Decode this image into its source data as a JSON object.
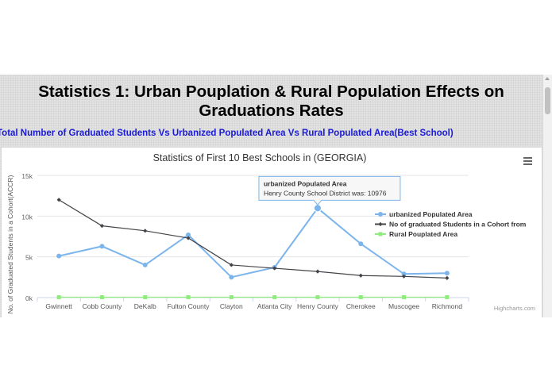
{
  "page": {
    "heading": "Statistics 1: Urban Pouplation & Rural Population Effects on Graduations Rates",
    "subheading": "Total Number of Graduated Students Vs Urbanized Populated Area Vs Rural Populated Area(Best School)"
  },
  "menu": {
    "icon": "hamburger-menu-icon"
  },
  "credits": "Highcharts.com",
  "chart_data": {
    "type": "line",
    "title": "Statistics of First 10 Best Schools in (GEORGIA)",
    "xlabel": "",
    "ylabel": "No. of Graduated Students in a Cohort(ACCR)",
    "ylim": [
      0,
      15000
    ],
    "yticks": [
      0,
      5000,
      10000,
      15000
    ],
    "ytick_labels": [
      "0k",
      "5k",
      "10k",
      "15k"
    ],
    "grid": true,
    "legend_position": "right",
    "categories": [
      "Gwinnett",
      "Cobb County",
      "DeKalb",
      "Fulton County",
      "Clayton",
      "Atlanta City",
      "Henry County",
      "Cherokee",
      "Muscogee",
      "Richmond"
    ],
    "series": [
      {
        "name": "urbanized Populated Area",
        "color": "#7cb5ec",
        "marker": "circle",
        "values": [
          5100,
          6300,
          4000,
          7700,
          2500,
          3700,
          10976,
          6600,
          2900,
          3000
        ]
      },
      {
        "name": "No of graduated Students in a Cohort from",
        "color": "#434348",
        "marker": "diamond",
        "values": [
          12000,
          8800,
          8200,
          7300,
          4000,
          3600,
          3200,
          2700,
          2600,
          2400
        ]
      },
      {
        "name": "Rural Pouplated Area",
        "color": "#90ed7d",
        "marker": "square",
        "values": [
          50,
          50,
          50,
          50,
          50,
          50,
          50,
          50,
          50,
          50
        ]
      }
    ],
    "tooltip": {
      "title": "urbanized Populated Area",
      "text": "Henry County School District was: 10976",
      "series_index": 0,
      "point_index": 6
    }
  }
}
